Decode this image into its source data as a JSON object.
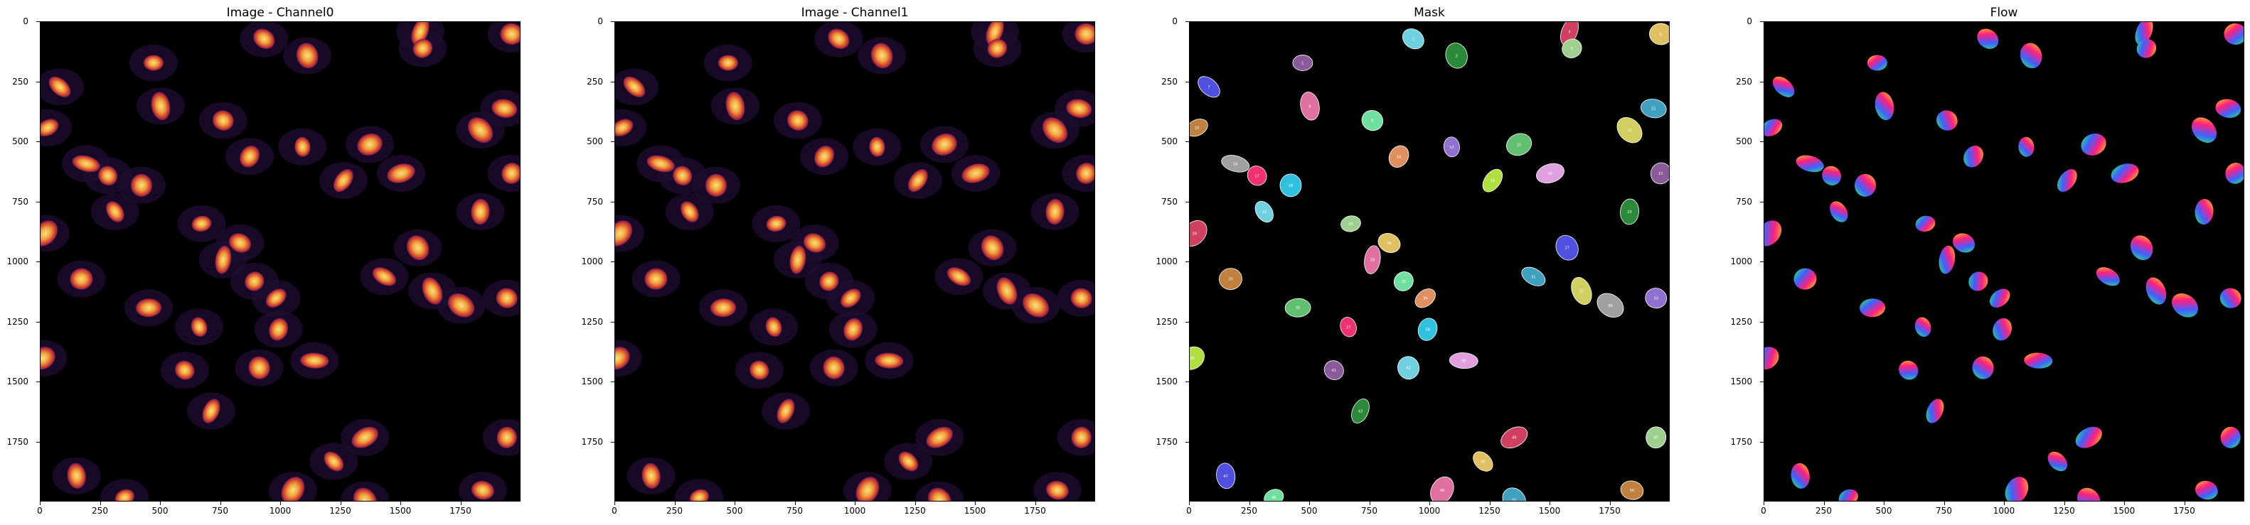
{
  "figure": {
    "panels": [
      {
        "id": "ch0",
        "title": "Image - Channel0",
        "kind": "intensity"
      },
      {
        "id": "ch1",
        "title": "Image - Channel1",
        "kind": "intensity"
      },
      {
        "id": "mask",
        "title": "Mask",
        "kind": "mask"
      },
      {
        "id": "flow",
        "title": "Flow",
        "kind": "flow"
      }
    ],
    "x_ticks": [
      "0",
      "250",
      "500",
      "750",
      "1000",
      "1250",
      "1500",
      "1750"
    ],
    "y_ticks": [
      "0",
      "250",
      "500",
      "750",
      "1000",
      "1250",
      "1500",
      "1750"
    ],
    "axis_max": 2000,
    "colors": {
      "background": "#000000",
      "nucleus_low": "#7a1a5a",
      "nucleus_mid": "#e0532a",
      "nucleus_high": "#fbe37a",
      "cytoplasm": "#20102e"
    }
  },
  "chart_data": {
    "type": "scatter",
    "title": "",
    "xlim": [
      0,
      2000
    ],
    "ylim": [
      2000,
      0
    ],
    "nuclei": [
      {
        "id": 1,
        "x": 470,
        "y": 170
      },
      {
        "id": 2,
        "x": 930,
        "y": 70
      },
      {
        "id": 3,
        "x": 1110,
        "y": 140
      },
      {
        "id": 4,
        "x": 1580,
        "y": 40
      },
      {
        "id": 5,
        "x": 1590,
        "y": 110
      },
      {
        "id": 6,
        "x": 1960,
        "y": 50
      },
      {
        "id": 7,
        "x": 80,
        "y": 270
      },
      {
        "id": 8,
        "x": 500,
        "y": 350
      },
      {
        "id": 9,
        "x": 760,
        "y": 410
      },
      {
        "id": 10,
        "x": 30,
        "y": 440
      },
      {
        "id": 11,
        "x": 1930,
        "y": 360
      },
      {
        "id": 12,
        "x": 1830,
        "y": 450
      },
      {
        "id": 13,
        "x": 1090,
        "y": 520
      },
      {
        "id": 14,
        "x": 870,
        "y": 560
      },
      {
        "id": 15,
        "x": 1370,
        "y": 510
      },
      {
        "id": 16,
        "x": 190,
        "y": 590
      },
      {
        "id": 17,
        "x": 280,
        "y": 640
      },
      {
        "id": 18,
        "x": 420,
        "y": 680
      },
      {
        "id": 19,
        "x": 1260,
        "y": 660
      },
      {
        "id": 20,
        "x": 1500,
        "y": 630
      },
      {
        "id": 21,
        "x": 1960,
        "y": 630
      },
      {
        "id": 22,
        "x": 310,
        "y": 790
      },
      {
        "id": 23,
        "x": 1830,
        "y": 790
      },
      {
        "id": 24,
        "x": 20,
        "y": 880
      },
      {
        "id": 25,
        "x": 670,
        "y": 840
      },
      {
        "id": 26,
        "x": 830,
        "y": 920
      },
      {
        "id": 27,
        "x": 1570,
        "y": 940
      },
      {
        "id": 28,
        "x": 760,
        "y": 990
      },
      {
        "id": 29,
        "x": 890,
        "y": 1080
      },
      {
        "id": 30,
        "x": 170,
        "y": 1070
      },
      {
        "id": 31,
        "x": 1430,
        "y": 1060
      },
      {
        "id": 32,
        "x": 1630,
        "y": 1120
      },
      {
        "id": 33,
        "x": 1940,
        "y": 1150
      },
      {
        "id": 34,
        "x": 980,
        "y": 1150
      },
      {
        "id": 35,
        "x": 450,
        "y": 1190
      },
      {
        "id": 36,
        "x": 1750,
        "y": 1180
      },
      {
        "id": 37,
        "x": 660,
        "y": 1270
      },
      {
        "id": 38,
        "x": 990,
        "y": 1280
      },
      {
        "id": 39,
        "x": 10,
        "y": 1400
      },
      {
        "id": 40,
        "x": 1140,
        "y": 1410
      },
      {
        "id": 41,
        "x": 600,
        "y": 1450
      },
      {
        "id": 42,
        "x": 910,
        "y": 1440
      },
      {
        "id": 43,
        "x": 710,
        "y": 1620
      },
      {
        "id": 44,
        "x": 1350,
        "y": 1730
      },
      {
        "id": 45,
        "x": 1940,
        "y": 1730
      },
      {
        "id": 46,
        "x": 1220,
        "y": 1830
      },
      {
        "id": 47,
        "x": 150,
        "y": 1890
      },
      {
        "id": 48,
        "x": 1050,
        "y": 1950
      },
      {
        "id": 49,
        "x": 350,
        "y": 1980
      },
      {
        "id": 50,
        "x": 1840,
        "y": 1950
      },
      {
        "id": 51,
        "x": 1350,
        "y": 1990
      }
    ]
  }
}
